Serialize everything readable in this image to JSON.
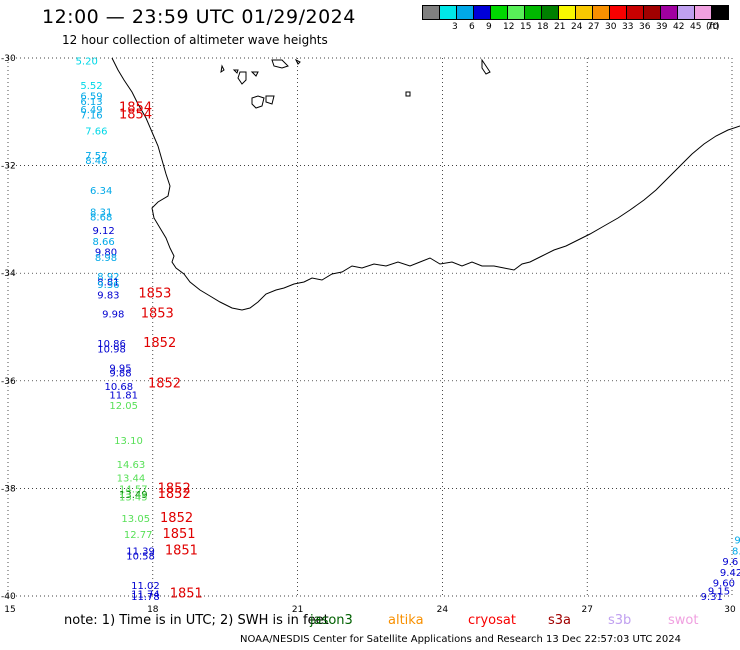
{
  "header": {
    "title": "12:00 — 23:59 UTC 01/29/2024",
    "subtitle": "12 hour collection of altimeter wave heights"
  },
  "scale": {
    "unit_label": "(ft)",
    "bins": [
      {
        "color": "#808080",
        "label": ""
      },
      {
        "color": "#00e8e8",
        "label": "3"
      },
      {
        "color": "#00a8e8",
        "label": "6"
      },
      {
        "color": "#0000d8",
        "label": "9"
      },
      {
        "color": "#00d800",
        "label": "12"
      },
      {
        "color": "#58f058",
        "label": "15"
      },
      {
        "color": "#00b800",
        "label": "18"
      },
      {
        "color": "#008000",
        "label": "21"
      },
      {
        "color": "#f8f800",
        "label": "24"
      },
      {
        "color": "#f8c800",
        "label": "27"
      },
      {
        "color": "#f89000",
        "label": "30"
      },
      {
        "color": "#f80000",
        "label": "33"
      },
      {
        "color": "#c80000",
        "label": "36"
      },
      {
        "color": "#a00000",
        "label": "39"
      },
      {
        "color": "#a000a0",
        "label": "42"
      },
      {
        "color": "#c0a0f0",
        "label": "45"
      },
      {
        "color": "#f0a0e0",
        "label": "70"
      },
      {
        "color": "#000000",
        "label": ""
      }
    ]
  },
  "map": {
    "lon_ticks": [
      "15",
      "18",
      "21",
      "24",
      "27",
      "30"
    ],
    "lat_ticks": [
      "-30",
      "-32",
      "-34",
      "-36",
      "-38",
      "-40"
    ],
    "lon_range": [
      15,
      30
    ],
    "lat_range": [
      -30,
      -40
    ]
  },
  "track_labels": [
    {
      "text": "5.20",
      "color": "#00d8e8",
      "lon": 16.4,
      "lat": -30.05
    },
    {
      "text": "5.52",
      "color": "#00d8e8",
      "lon": 16.5,
      "lat": -30.5
    },
    {
      "text": "6.59",
      "color": "#00a8e8",
      "lon": 16.5,
      "lat": -30.7
    },
    {
      "text": "6.13",
      "color": "#00a8e8",
      "lon": 16.5,
      "lat": -30.8
    },
    {
      "text": "6.49",
      "color": "#00a8e8",
      "lon": 16.5,
      "lat": -30.95
    },
    {
      "text": "7.16",
      "color": "#00a8e8",
      "lon": 16.5,
      "lat": -31.05
    },
    {
      "text": "1854",
      "color": "#e00000",
      "lon": 17.3,
      "lat": -30.92
    },
    {
      "text": "1854",
      "color": "#e00000",
      "lon": 17.3,
      "lat": -31.05
    },
    {
      "text": "7.66",
      "color": "#00d8e8",
      "lon": 16.6,
      "lat": -31.35
    },
    {
      "text": "7.57",
      "color": "#00a8e8",
      "lon": 16.6,
      "lat": -31.8
    },
    {
      "text": "8.48",
      "color": "#00a8e8",
      "lon": 16.6,
      "lat": -31.9
    },
    {
      "text": "6.34",
      "color": "#00a8e8",
      "lon": 16.7,
      "lat": -32.45
    },
    {
      "text": "8.31",
      "color": "#00a8e8",
      "lon": 16.7,
      "lat": -32.85
    },
    {
      "text": "8.68",
      "color": "#00a8e8",
      "lon": 16.7,
      "lat": -32.95
    },
    {
      "text": "9.12",
      "color": "#0000d0",
      "lon": 16.75,
      "lat": -33.2
    },
    {
      "text": "8.66",
      "color": "#00a8e8",
      "lon": 16.75,
      "lat": -33.4
    },
    {
      "text": "9.80",
      "color": "#0000d0",
      "lon": 16.8,
      "lat": -33.6
    },
    {
      "text": "8.98",
      "color": "#00a8e8",
      "lon": 16.8,
      "lat": -33.7
    },
    {
      "text": "8.92",
      "color": "#00a8e8",
      "lon": 16.85,
      "lat": -34.05
    },
    {
      "text": "8.81",
      "color": "#0000d0",
      "lon": 16.85,
      "lat": -34.15
    },
    {
      "text": "9.36",
      "color": "#00a8e8",
      "lon": 16.85,
      "lat": -34.2
    },
    {
      "text": "9.83",
      "color": "#0000d0",
      "lon": 16.85,
      "lat": -34.4
    },
    {
      "text": "1853",
      "color": "#e00000",
      "lon": 17.7,
      "lat": -34.38
    },
    {
      "text": "9.98",
      "color": "#0000d0",
      "lon": 16.95,
      "lat": -34.75
    },
    {
      "text": "1853",
      "color": "#e00000",
      "lon": 17.75,
      "lat": -34.75
    },
    {
      "text": "10.86",
      "color": "#0000d0",
      "lon": 16.85,
      "lat": -35.3
    },
    {
      "text": "10.98",
      "color": "#0000d0",
      "lon": 16.85,
      "lat": -35.4
    },
    {
      "text": "1852",
      "color": "#e00000",
      "lon": 17.8,
      "lat": -35.3
    },
    {
      "text": "9.95",
      "color": "#0000d0",
      "lon": 17.1,
      "lat": -35.75
    },
    {
      "text": "9.88",
      "color": "#0000d0",
      "lon": 17.1,
      "lat": -35.85
    },
    {
      "text": "10.68",
      "color": "#0000d0",
      "lon": 17.0,
      "lat": -36.1
    },
    {
      "text": "1852",
      "color": "#e00000",
      "lon": 17.9,
      "lat": -36.05
    },
    {
      "text": "11.81",
      "color": "#0000d0",
      "lon": 17.1,
      "lat": -36.25
    },
    {
      "text": "12.05",
      "color": "#58e058",
      "lon": 17.1,
      "lat": -36.45
    },
    {
      "text": "13.10",
      "color": "#58e058",
      "lon": 17.2,
      "lat": -37.1
    },
    {
      "text": "14.63",
      "color": "#58e058",
      "lon": 17.25,
      "lat": -37.55
    },
    {
      "text": "13.44",
      "color": "#58e058",
      "lon": 17.25,
      "lat": -37.8
    },
    {
      "text": "14.57",
      "color": "#58e058",
      "lon": 17.3,
      "lat": -38.0
    },
    {
      "text": "13.49",
      "color": "#008000",
      "lon": 17.3,
      "lat": -38.1
    },
    {
      "text": "13.45",
      "color": "#58e058",
      "lon": 17.3,
      "lat": -38.15
    },
    {
      "text": "1852",
      "color": "#e00000",
      "lon": 18.1,
      "lat": -38.0
    },
    {
      "text": "1852",
      "color": "#e00000",
      "lon": 18.1,
      "lat": -38.1
    },
    {
      "text": "13.05",
      "color": "#58e058",
      "lon": 17.35,
      "lat": -38.55
    },
    {
      "text": "1852",
      "color": "#e00000",
      "lon": 18.15,
      "lat": -38.55
    },
    {
      "text": "12.77",
      "color": "#58e058",
      "lon": 17.4,
      "lat": -38.85
    },
    {
      "text": "1851",
      "color": "#e00000",
      "lon": 18.2,
      "lat": -38.85
    },
    {
      "text": "11.39",
      "color": "#0000d0",
      "lon": 17.45,
      "lat": -39.15
    },
    {
      "text": "10.58",
      "color": "#0000d0",
      "lon": 17.45,
      "lat": -39.25
    },
    {
      "text": "1851",
      "color": "#e00000",
      "lon": 18.25,
      "lat": -39.15
    },
    {
      "text": "11.02",
      "color": "#0000d0",
      "lon": 17.55,
      "lat": -39.8
    },
    {
      "text": "11.74",
      "color": "#0000d0",
      "lon": 17.55,
      "lat": -39.95
    },
    {
      "text": "11.78",
      "color": "#0000d0",
      "lon": 17.55,
      "lat": -40.0
    },
    {
      "text": "1851",
      "color": "#e00000",
      "lon": 18.35,
      "lat": -39.95
    },
    {
      "text": "9",
      "color": "#00a8e8",
      "lon": 30.05,
      "lat": -38.95
    },
    {
      "text": "8.",
      "color": "#00a8e8",
      "lon": 30.0,
      "lat": -39.15
    },
    {
      "text": "9.6",
      "color": "#0000d0",
      "lon": 29.8,
      "lat": -39.35
    },
    {
      "text": "9.42",
      "color": "#0000d0",
      "lon": 29.75,
      "lat": -39.55
    },
    {
      "text": "9.60",
      "color": "#0000d0",
      "lon": 29.6,
      "lat": -39.75
    },
    {
      "text": "9.15",
      "color": "#0000d0",
      "lon": 29.5,
      "lat": -39.9
    },
    {
      "text": "9.31",
      "color": "#0000d0",
      "lon": 29.35,
      "lat": -40.0
    }
  ],
  "footer": {
    "note": "note: 1) Time is in UTC; 2) SWH is in feet",
    "missions": [
      {
        "name": "jason3",
        "color": "#006000"
      },
      {
        "name": "altika",
        "color": "#f89000"
      },
      {
        "name": "cryosat",
        "color": "#f80000"
      },
      {
        "name": "s3a",
        "color": "#a00000"
      },
      {
        "name": "s3b",
        "color": "#c0a0f0"
      },
      {
        "name": "swot",
        "color": "#f0a0e0"
      }
    ],
    "credit": "NOAA/NESDIS Center for Satellite Applications and Research     13 Dec 22:57:03 UTC 2024"
  }
}
